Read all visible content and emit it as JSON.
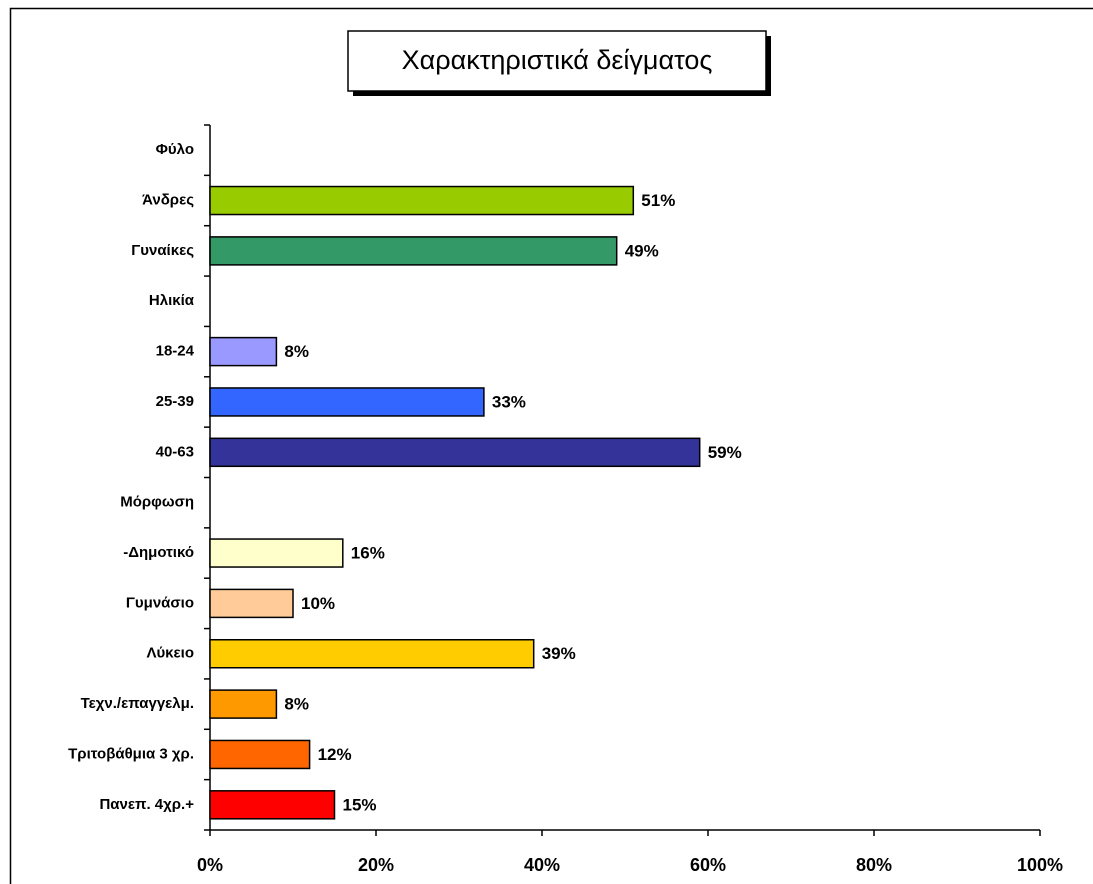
{
  "chart_data": {
    "type": "bar",
    "orientation": "horizontal",
    "title": "Χαρακτηριστικά δείγματος",
    "categories": [
      "Φύλο",
      "Άνδρες",
      "Γυναίκες",
      "Ηλικία",
      "18-24",
      "25-39",
      "40-63",
      "Μόρφωση",
      "-Δημοτικό",
      "Γυμνάσιο",
      "Λύκειο",
      "Τεχν./επαγγελμ.",
      "Τριτοβάθμια 3 χρ.",
      "Πανεπ. 4χρ.+"
    ],
    "values": [
      null,
      51,
      49,
      null,
      8,
      33,
      59,
      null,
      16,
      10,
      39,
      8,
      12,
      15
    ],
    "value_labels": [
      null,
      "51%",
      "49%",
      null,
      "8%",
      "33%",
      "59%",
      null,
      "16%",
      "10%",
      "39%",
      "8%",
      "12%",
      "15%"
    ],
    "colors": [
      null,
      "#99cc00",
      "#339966",
      null,
      "#9999ff",
      "#3366ff",
      "#333399",
      null,
      "#ffffcc",
      "#ffcc99",
      "#ffcc00",
      "#ff9900",
      "#ff6600",
      "#ff0000"
    ],
    "xlim": [
      0,
      100
    ],
    "xticks": [
      {
        "value": 0,
        "label": "0%"
      },
      {
        "value": 20,
        "label": "20%"
      },
      {
        "value": 40,
        "label": "40%"
      },
      {
        "value": 60,
        "label": "60%"
      },
      {
        "value": 80,
        "label": "80%"
      },
      {
        "value": 100,
        "label": "100%"
      }
    ],
    "grid": false
  }
}
